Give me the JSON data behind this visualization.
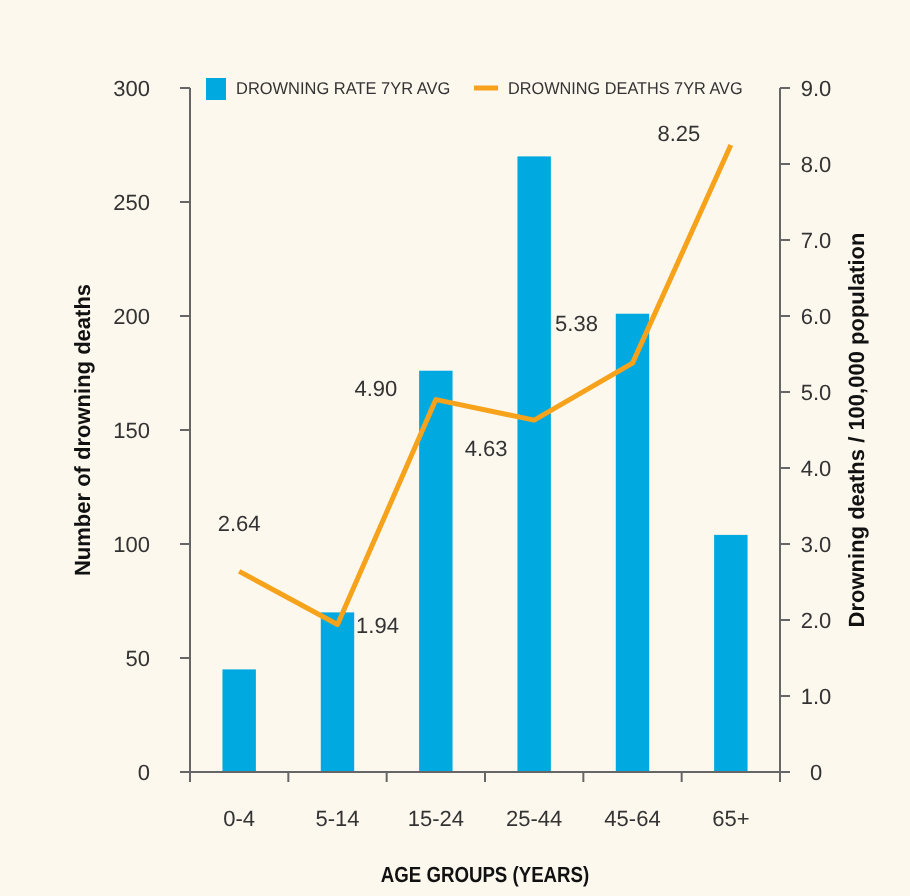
{
  "chart_data": {
    "type": "bar",
    "xlabel": "AGE GROUPS (YEARS)",
    "ylabel": "Number of drowning deaths",
    "y2label": "Drowning deaths / 100,000 population",
    "categories": [
      "0-4",
      "5-14",
      "15-24",
      "25-44",
      "45-64",
      "65+"
    ],
    "series": [
      {
        "name": "DROWNING RATE 7YR AVG",
        "color": "#00a9e0",
        "values": [
          45,
          70,
          176,
          270,
          201,
          104
        ]
      },
      {
        "name": "DROWNING DEATHS 7YR AVG",
        "type": "line",
        "axis": "y2",
        "color": "#f7a21b",
        "values": [
          2.64,
          1.94,
          4.9,
          4.63,
          5.38,
          8.25
        ],
        "value_labels": [
          "2.64",
          "1.94",
          "4.90",
          "4.63",
          "5.38",
          "8.25"
        ]
      }
    ],
    "ylim": [
      0,
      300
    ],
    "yticks": [
      0,
      50,
      100,
      150,
      200,
      250,
      300
    ],
    "y2lim": [
      0,
      9
    ],
    "y2ticks": [
      {
        "value": 0,
        "label": "0"
      },
      {
        "value": 1,
        "label": "1.0"
      },
      {
        "value": 2,
        "label": "2.0"
      },
      {
        "value": 3,
        "label": "3.0"
      },
      {
        "value": 4,
        "label": "4.0"
      },
      {
        "value": 5,
        "label": "5.0"
      },
      {
        "value": 6,
        "label": "6.0"
      },
      {
        "value": 7,
        "label": "7.0"
      },
      {
        "value": 8,
        "label": "8.0"
      },
      {
        "value": 9,
        "label": "9.0"
      }
    ],
    "legend": "top",
    "grid": false
  }
}
